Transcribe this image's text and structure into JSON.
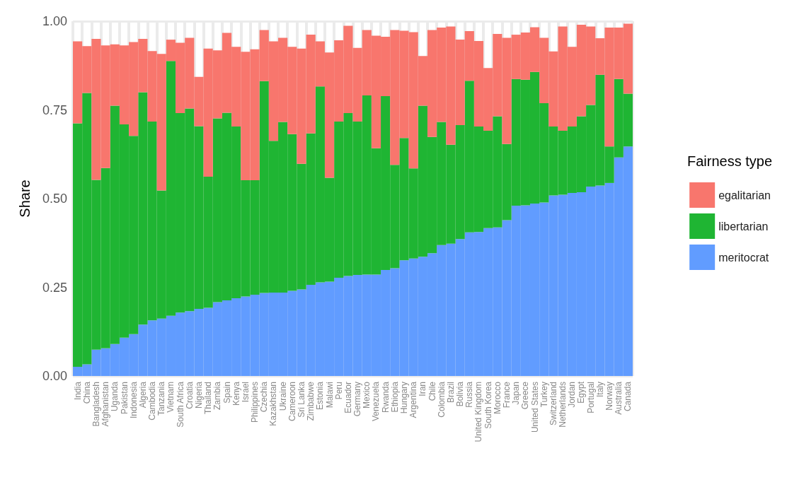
{
  "chart_data": {
    "type": "bar",
    "stacked": true,
    "ylabel": "Share",
    "legend_title": "Fairness type",
    "legend": "right",
    "grid": true,
    "categories": [
      "India",
      "China",
      "Bangladesh",
      "Afghanistan",
      "Uganda",
      "Pakistan",
      "Indonesia",
      "Algeria",
      "Cambodia",
      "Tanzania",
      "Vietnam",
      "South Africa",
      "Croatia",
      "Nigeria",
      "Thailand",
      "Zambia",
      "Spain",
      "Kenya",
      "Israel",
      "Philippines",
      "Czechia",
      "Kazakhstan",
      "Ukraine",
      "Cameroon",
      "Sri Lanka",
      "Zimbabwe",
      "Estonia",
      "Malawi",
      "Peru",
      "Ecuador",
      "Germany",
      "Mexico",
      "Venezuela",
      "Rwanda",
      "Ethiopia",
      "Hungary",
      "Argentina",
      "Iran",
      "Chile",
      "Colombia",
      "Brazil",
      "Bolivia",
      "Russia",
      "United Kingdom",
      "South Korea",
      "Morocco",
      "France",
      "Japan",
      "Greece",
      "United States",
      "Turkey",
      "Switzerland",
      "Netherlands",
      "Jordan",
      "Egypt",
      "Portugal",
      "Italy",
      "Norway",
      "Australia",
      "Canada"
    ],
    "ylim": [
      0,
      1
    ],
    "yticks": [
      {
        "value": 0,
        "label": "0.00"
      },
      {
        "value": 0.25,
        "label": "0.25"
      },
      {
        "value": 0.5,
        "label": "0.50"
      },
      {
        "value": 0.75,
        "label": "0.75"
      },
      {
        "value": 1,
        "label": "1.00"
      }
    ],
    "series": [
      {
        "name": "meritocrat",
        "color": "#619cff",
        "values": [
          0.026,
          0.033,
          0.074,
          0.078,
          0.09,
          0.108,
          0.118,
          0.145,
          0.157,
          0.162,
          0.17,
          0.179,
          0.183,
          0.189,
          0.192,
          0.208,
          0.213,
          0.219,
          0.224,
          0.229,
          0.234,
          0.235,
          0.235,
          0.24,
          0.244,
          0.257,
          0.264,
          0.266,
          0.277,
          0.282,
          0.285,
          0.286,
          0.286,
          0.299,
          0.304,
          0.326,
          0.331,
          0.336,
          0.346,
          0.369,
          0.373,
          0.386,
          0.405,
          0.406,
          0.417,
          0.419,
          0.439,
          0.48,
          0.481,
          0.486,
          0.489,
          0.509,
          0.511,
          0.516,
          0.518,
          0.534,
          0.537,
          0.544,
          0.616,
          0.647
        ]
      },
      {
        "name": "libertarian",
        "color": "#1fb533",
        "values": [
          0.686,
          0.765,
          0.479,
          0.508,
          0.672,
          0.601,
          0.559,
          0.655,
          0.56,
          0.361,
          0.718,
          0.562,
          0.571,
          0.515,
          0.37,
          0.518,
          0.529,
          0.484,
          0.328,
          0.323,
          0.597,
          0.428,
          0.481,
          0.442,
          0.354,
          0.427,
          0.552,
          0.293,
          0.44,
          0.459,
          0.432,
          0.505,
          0.356,
          0.49,
          0.291,
          0.345,
          0.254,
          0.426,
          0.328,
          0.347,
          0.279,
          0.321,
          0.427,
          0.297,
          0.274,
          0.313,
          0.215,
          0.357,
          0.354,
          0.371,
          0.28,
          0.194,
          0.18,
          0.187,
          0.214,
          0.23,
          0.312,
          0.103,
          0.221,
          0.149
        ]
      },
      {
        "name": "egalitarian",
        "color": "#f8766d",
        "values": [
          0.231,
          0.132,
          0.397,
          0.346,
          0.173,
          0.223,
          0.264,
          0.15,
          0.199,
          0.385,
          0.06,
          0.198,
          0.199,
          0.139,
          0.361,
          0.192,
          0.225,
          0.225,
          0.362,
          0.369,
          0.144,
          0.28,
          0.237,
          0.246,
          0.325,
          0.278,
          0.127,
          0.353,
          0.229,
          0.246,
          0.208,
          0.184,
          0.317,
          0.167,
          0.38,
          0.302,
          0.384,
          0.14,
          0.301,
          0.266,
          0.333,
          0.241,
          0.14,
          0.241,
          0.177,
          0.232,
          0.299,
          0.125,
          0.133,
          0.126,
          0.184,
          0.212,
          0.294,
          0.225,
          0.258,
          0.221,
          0.103,
          0.335,
          0.145,
          0.197
        ]
      }
    ]
  }
}
